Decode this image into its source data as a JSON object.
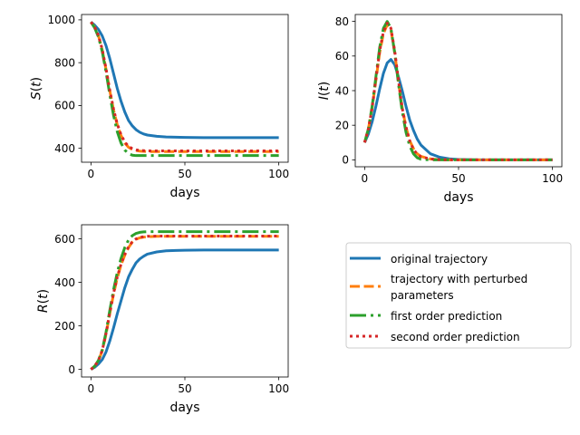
{
  "chart_data": [
    {
      "type": "line",
      "ylabel": "S(t)",
      "xlabel": "days",
      "xlim": [
        -5,
        105
      ],
      "ylim": [
        335,
        1025
      ],
      "xticks": [
        0,
        50,
        100
      ],
      "yticks": [
        400,
        600,
        800,
        1000
      ],
      "grid": false,
      "x": [
        0,
        2,
        4,
        6,
        8,
        10,
        12,
        14,
        16,
        18,
        20,
        22,
        24,
        26,
        28,
        30,
        35,
        40,
        45,
        50,
        60,
        70,
        80,
        90,
        100
      ],
      "series": [
        {
          "ref": "original",
          "values": [
            990,
            975,
            955,
            925,
            880,
            820,
            750,
            680,
            620,
            570,
            530,
            505,
            487,
            475,
            467,
            462,
            456,
            453,
            452,
            451,
            450,
            450,
            450,
            450,
            450
          ]
        },
        {
          "ref": "perturbed",
          "values": [
            990,
            965,
            925,
            860,
            770,
            670,
            580,
            510,
            460,
            425,
            405,
            395,
            390,
            387,
            386,
            385,
            385,
            385,
            385,
            385,
            385,
            385,
            385,
            385,
            385
          ]
        },
        {
          "ref": "first",
          "values": [
            990,
            962,
            920,
            852,
            758,
            652,
            555,
            478,
            425,
            392,
            375,
            368,
            366,
            366,
            366,
            366,
            366,
            366,
            366,
            366,
            366,
            366,
            366,
            366,
            366
          ]
        },
        {
          "ref": "second",
          "values": [
            990,
            966,
            927,
            862,
            773,
            673,
            584,
            514,
            464,
            429,
            409,
            399,
            393,
            390,
            389,
            388,
            388,
            388,
            388,
            388,
            388,
            388,
            388,
            388,
            388
          ]
        }
      ]
    },
    {
      "type": "line",
      "ylabel": "I(t)",
      "xlabel": "days",
      "xlim": [
        -5,
        105
      ],
      "ylim": [
        -4,
        84
      ],
      "xticks": [
        0,
        50,
        100
      ],
      "yticks": [
        0,
        20,
        40,
        60,
        80
      ],
      "grid": false,
      "x": [
        0,
        2,
        4,
        6,
        8,
        10,
        12,
        14,
        16,
        18,
        20,
        22,
        24,
        26,
        28,
        30,
        35,
        40,
        45,
        50,
        60,
        70,
        80,
        90,
        100
      ],
      "series": [
        {
          "ref": "original",
          "values": [
            10,
            15,
            22,
            31,
            41,
            50,
            56,
            58,
            55,
            48,
            40,
            31,
            23,
            17,
            12,
            8.5,
            3.5,
            1.5,
            0.6,
            0.2,
            0,
            0,
            0,
            0,
            0
          ]
        },
        {
          "ref": "perturbed",
          "values": [
            10,
            18,
            30,
            46,
            62,
            73,
            78,
            75,
            62,
            45,
            30,
            19,
            11,
            6.5,
            3.5,
            2,
            0.5,
            0.1,
            0,
            0,
            0,
            0,
            0,
            0,
            0
          ]
        },
        {
          "ref": "first",
          "values": [
            10,
            18,
            31,
            48,
            65,
            76,
            80,
            76,
            62,
            44,
            28,
            16,
            8,
            3.5,
            1.2,
            0.3,
            0,
            0,
            0,
            0,
            0,
            0,
            0,
            0,
            0
          ]
        },
        {
          "ref": "second",
          "values": [
            10,
            18,
            30,
            47,
            63,
            74,
            79,
            76,
            63,
            46,
            30,
            19,
            11,
            6,
            3.3,
            1.8,
            0.5,
            0.1,
            0,
            0,
            0,
            0,
            0,
            0,
            0
          ]
        }
      ]
    },
    {
      "type": "line",
      "ylabel": "R(t)",
      "xlabel": "days",
      "xlim": [
        -5,
        105
      ],
      "ylim": [
        -35,
        665
      ],
      "xticks": [
        0,
        50,
        100
      ],
      "yticks": [
        0,
        200,
        400,
        600
      ],
      "grid": false,
      "x": [
        0,
        2,
        4,
        6,
        8,
        10,
        12,
        14,
        16,
        18,
        20,
        22,
        24,
        26,
        28,
        30,
        35,
        40,
        45,
        50,
        60,
        70,
        80,
        90,
        100
      ],
      "series": [
        {
          "ref": "original",
          "values": [
            0,
            10,
            25,
            45,
            80,
            130,
            190,
            255,
            315,
            375,
            425,
            460,
            490,
            508,
            520,
            530,
            540,
            545,
            547,
            548,
            549,
            549,
            549,
            549,
            549
          ]
        },
        {
          "ref": "perturbed",
          "values": [
            0,
            15,
            40,
            85,
            160,
            255,
            345,
            420,
            480,
            525,
            560,
            585,
            598,
            605,
            608,
            610,
            612,
            612,
            612,
            612,
            612,
            612,
            612,
            612,
            612
          ]
        },
        {
          "ref": "first",
          "values": [
            0,
            15,
            42,
            90,
            170,
            270,
            365,
            445,
            510,
            560,
            595,
            615,
            625,
            630,
            632,
            633,
            633,
            633,
            633,
            633,
            633,
            633,
            633,
            633,
            633
          ]
        },
        {
          "ref": "second",
          "values": [
            0,
            15,
            41,
            87,
            164,
            259,
            349,
            424,
            484,
            529,
            563,
            587,
            600,
            607,
            610,
            612,
            613,
            613,
            613,
            613,
            613,
            613,
            613,
            613,
            613
          ]
        }
      ]
    }
  ],
  "legend": {
    "placement": "lower-right",
    "entries": [
      {
        "ref": "original",
        "label_lines": [
          "original trajectory"
        ],
        "color": "#1f77b4",
        "style": "solid"
      },
      {
        "ref": "perturbed",
        "label_lines": [
          "trajectory with perturbed",
          "parameters"
        ],
        "color": "#ff7f0e",
        "style": "dashed"
      },
      {
        "ref": "first",
        "label_lines": [
          "first order prediction"
        ],
        "color": "#2ca02c",
        "style": "dashdot"
      },
      {
        "ref": "second",
        "label_lines": [
          "second order prediction"
        ],
        "color": "#d62728",
        "style": "dotted"
      }
    ]
  }
}
